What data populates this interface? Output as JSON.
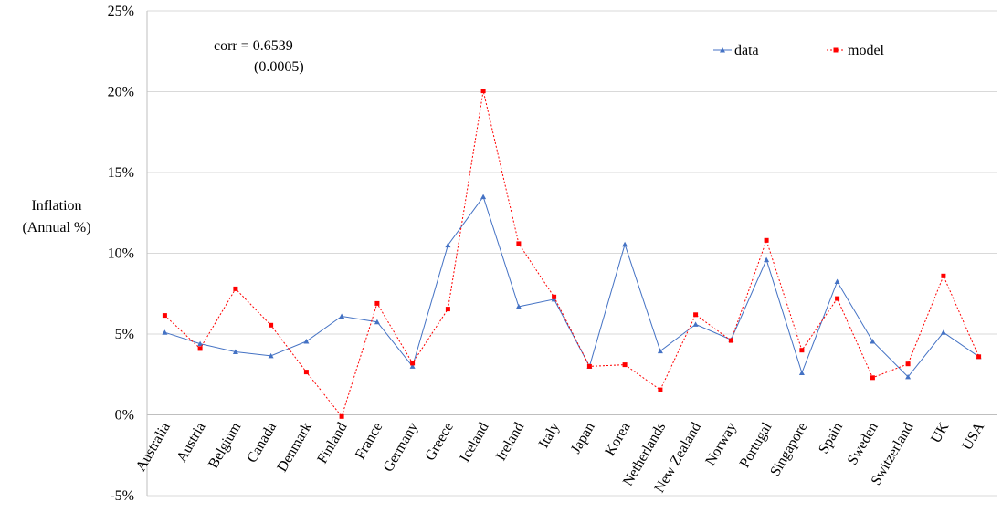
{
  "chart_data": {
    "type": "line",
    "title": "",
    "xlabel": "",
    "ylabel_lines": [
      "Inflation",
      "(Annual %)"
    ],
    "ylim": [
      -5,
      25
    ],
    "yticks": [
      -5,
      0,
      5,
      10,
      15,
      20,
      25
    ],
    "ytick_labels": [
      "-5%",
      "0%",
      "5%",
      "10%",
      "15%",
      "20%",
      "25%"
    ],
    "grid": true,
    "categories": [
      "Australia",
      "Austria",
      "Belgium",
      "Canada",
      "Denmark",
      "Finland",
      "France",
      "Germany",
      "Greece",
      "Iceland",
      "Ireland",
      "Italy",
      "Japan",
      "Korea",
      "Netherlands",
      "New Zealand",
      "Norway",
      "Portugal",
      "Singapore",
      "Spain",
      "Sweden",
      "Switzerland",
      "UK",
      "USA"
    ],
    "series": [
      {
        "name": "data",
        "color": "#4472C4",
        "marker": "triangle",
        "line_style": "solid",
        "values": [
          5.1,
          4.4,
          3.9,
          3.65,
          4.55,
          6.1,
          5.75,
          3.0,
          10.5,
          13.5,
          6.7,
          7.15,
          3.0,
          10.55,
          3.95,
          5.6,
          4.65,
          9.6,
          2.6,
          8.25,
          4.55,
          2.35,
          5.1,
          3.6
        ]
      },
      {
        "name": "model",
        "color": "#FF0000",
        "marker": "square",
        "line_style": "dotted",
        "values": [
          6.15,
          4.1,
          7.8,
          5.55,
          2.65,
          -0.1,
          6.9,
          3.2,
          6.55,
          20.05,
          10.6,
          7.3,
          3.0,
          3.1,
          1.55,
          6.2,
          4.6,
          10.8,
          4.0,
          7.2,
          2.3,
          3.15,
          8.6,
          3.6
        ]
      }
    ],
    "legend": {
      "placement": "top-right",
      "entries": [
        "data",
        "model"
      ]
    },
    "annotation": {
      "line1": "corr = 0.6539",
      "line2": "(0.0005)"
    }
  }
}
